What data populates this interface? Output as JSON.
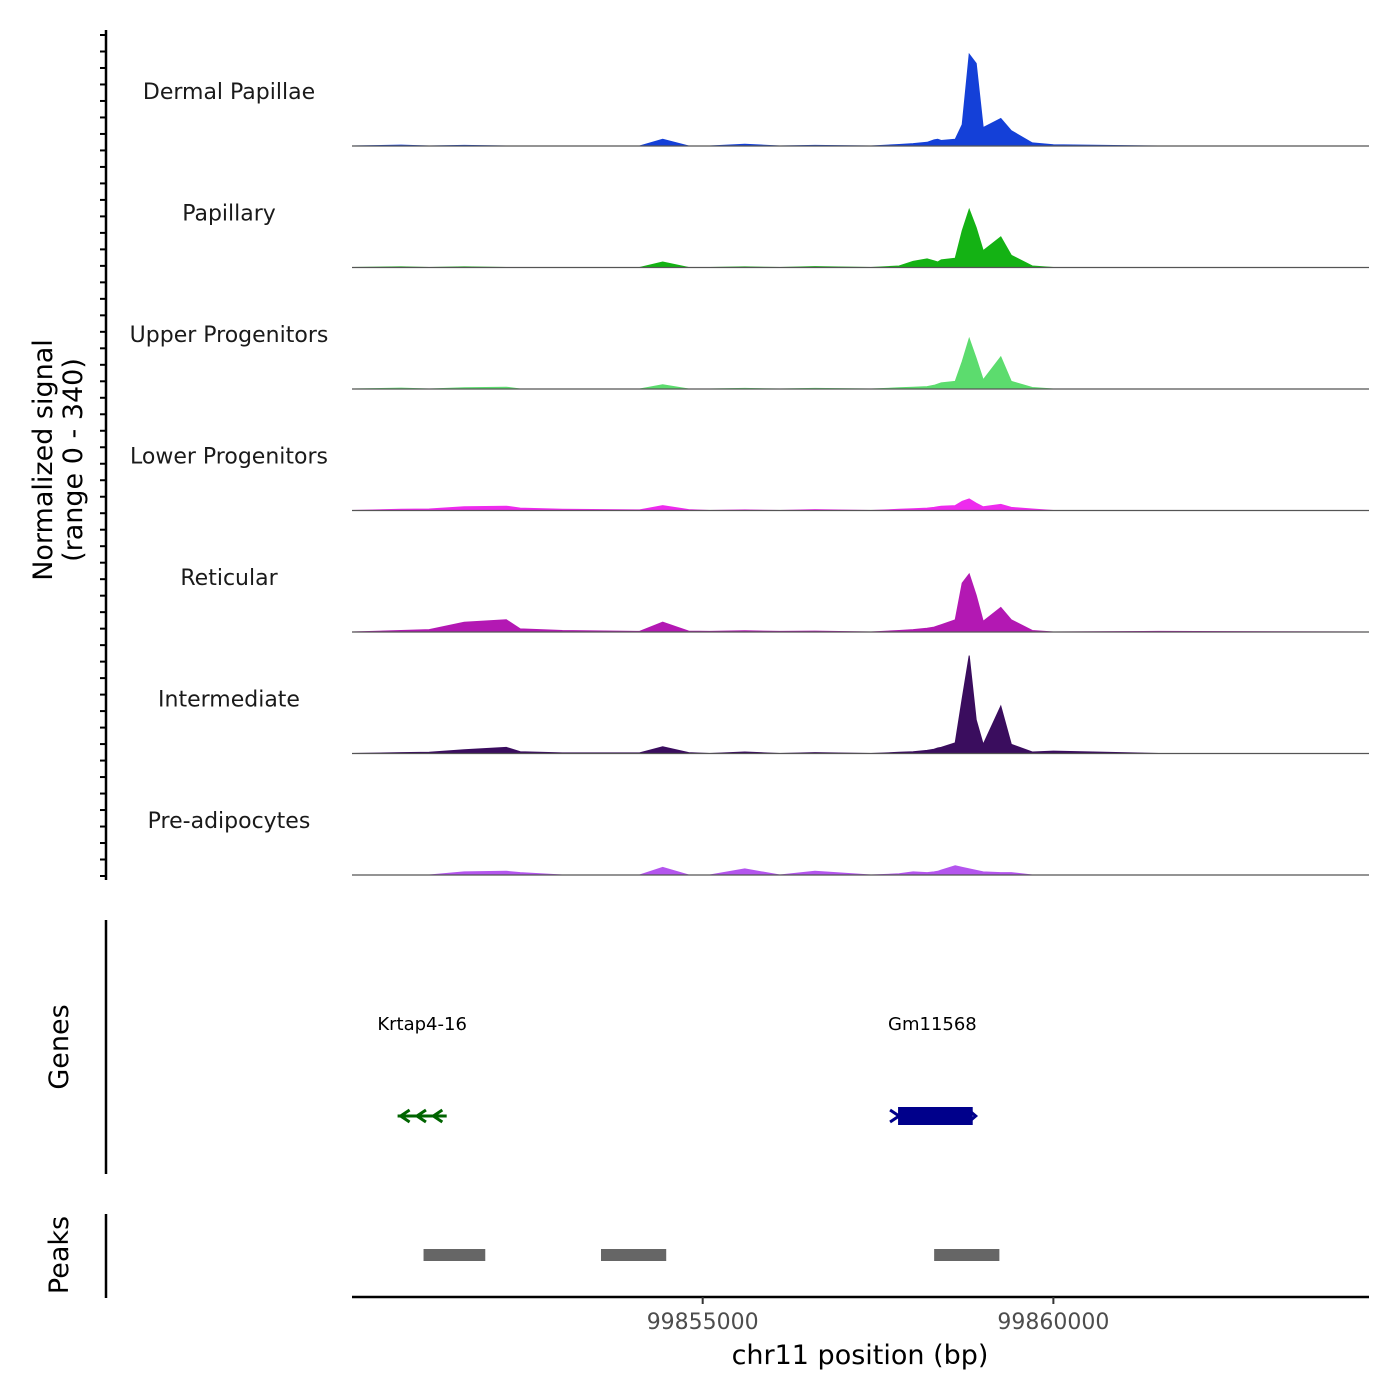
{
  "chart_data": {
    "type": "area",
    "title": "",
    "y_axis_label": "Normalized signal",
    "y_axis_sublabel": "(range 0 - 340)",
    "ylim": [
      0,
      340
    ],
    "x_axis_label": "chr11 position (bp)",
    "xlim": [
      99850000,
      99864500
    ],
    "x_ticks": [
      99855000,
      99860000
    ],
    "x_tick_labels": [
      "99855000",
      "99860000"
    ],
    "signal_x": [
      99850000,
      99850700,
      99851100,
      99851600,
      99852200,
      99852400,
      99853000,
      99854100,
      99854430,
      99854800,
      99855100,
      99855600,
      99856100,
      99856600,
      99857400,
      99857800,
      99858000,
      99858200,
      99858300,
      99858350,
      99858400,
      99858600,
      99858700,
      99858800,
      99858900,
      99859000,
      99859250,
      99859400,
      99859700,
      99860000,
      99861500,
      99864500
    ],
    "tracks": [
      {
        "name": "Dermal Papillae",
        "color": "#1440d8",
        "values": [
          0,
          3,
          0,
          2,
          0,
          0,
          0,
          0,
          22,
          0,
          0,
          6,
          0,
          2,
          0,
          5,
          8,
          12,
          20,
          22,
          18,
          22,
          70,
          300,
          270,
          60,
          90,
          50,
          10,
          4,
          0,
          0
        ]
      },
      {
        "name": "Papillary",
        "color": "#14b214",
        "values": [
          0,
          2,
          0,
          2,
          0,
          0,
          0,
          0,
          18,
          0,
          0,
          2,
          0,
          3,
          0,
          5,
          20,
          28,
          22,
          18,
          25,
          30,
          120,
          190,
          130,
          55,
          100,
          40,
          5,
          0,
          0,
          0
        ]
      },
      {
        "name": "Upper Progenitors",
        "color": "#5cdc6e",
        "values": [
          0,
          3,
          0,
          4,
          6,
          0,
          0,
          0,
          14,
          0,
          0,
          2,
          0,
          2,
          0,
          4,
          6,
          8,
          12,
          16,
          20,
          25,
          90,
          165,
          100,
          30,
          105,
          25,
          5,
          0,
          0,
          0
        ]
      },
      {
        "name": "Lower Progenitors",
        "color": "#ee2bee",
        "values": [
          0,
          4,
          5,
          12,
          14,
          8,
          4,
          2,
          16,
          3,
          0,
          2,
          0,
          3,
          0,
          4,
          6,
          8,
          10,
          12,
          14,
          16,
          30,
          38,
          24,
          12,
          20,
          10,
          5,
          0,
          0,
          0
        ]
      },
      {
        "name": "Reticular",
        "color": "#b318b3",
        "values": [
          0,
          5,
          8,
          32,
          40,
          10,
          5,
          2,
          32,
          3,
          2,
          4,
          2,
          3,
          0,
          5,
          8,
          12,
          16,
          20,
          24,
          40,
          160,
          190,
          120,
          35,
          80,
          40,
          5,
          0,
          2,
          0
        ]
      },
      {
        "name": "Intermediate",
        "color": "#3a0d5e",
        "values": [
          0,
          3,
          4,
          12,
          20,
          6,
          2,
          2,
          22,
          3,
          0,
          5,
          0,
          3,
          0,
          4,
          6,
          10,
          14,
          18,
          20,
          35,
          180,
          320,
          110,
          30,
          155,
          30,
          5,
          8,
          0,
          0
        ]
      },
      {
        "name": "Pre-adipocytes",
        "color": "#b455ee",
        "values": [
          0,
          0,
          0,
          10,
          12,
          8,
          0,
          0,
          25,
          0,
          0,
          20,
          0,
          12,
          0,
          4,
          10,
          8,
          10,
          12,
          16,
          30,
          25,
          20,
          15,
          10,
          8,
          8,
          0,
          0,
          0,
          0
        ]
      }
    ],
    "genes_label": "Genes",
    "genes": [
      {
        "name": "Krtap4-16",
        "start": 99850650,
        "end": 99851350,
        "strand": "-",
        "color": "#006400"
      },
      {
        "name": "Gm11568",
        "start": 99857700,
        "end": 99858850,
        "strand": "+",
        "color": "#00008b"
      }
    ],
    "peaks_label": "Peaks",
    "peaks": [
      {
        "start": 99851020,
        "end": 99851900
      },
      {
        "start": 99853550,
        "end": 99854480
      },
      {
        "start": 99858300,
        "end": 99859230
      }
    ],
    "peak_color": "#666666"
  }
}
